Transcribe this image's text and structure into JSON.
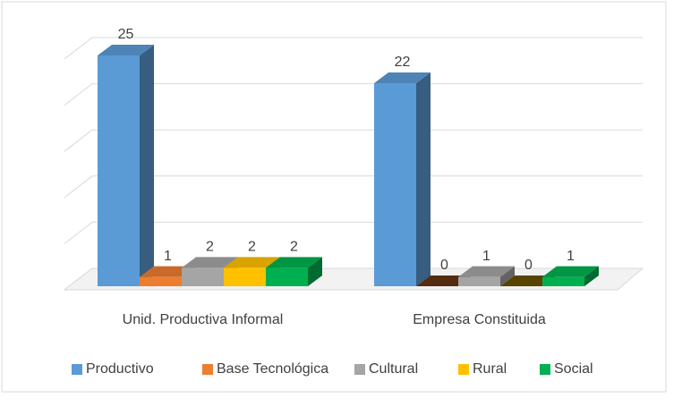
{
  "chart_data": {
    "type": "bar3d",
    "categories": [
      "Unid. Productiva Informal",
      "Empresa Constituida"
    ],
    "series": [
      {
        "name": "Productivo",
        "color": "#5b9bd5",
        "values": [
          25,
          22
        ]
      },
      {
        "name": "Base Tecnológica",
        "color": "#ed7d31",
        "values": [
          1,
          0
        ]
      },
      {
        "name": "Cultural",
        "color": "#a5a5a5",
        "values": [
          2,
          1
        ]
      },
      {
        "name": "Rural",
        "color": "#ffc000",
        "values": [
          2,
          0
        ]
      },
      {
        "name": "Social",
        "color": "#00b050",
        "values": [
          2,
          1
        ]
      }
    ],
    "ylim": [
      0,
      25
    ],
    "yticks": [
      0,
      5,
      10,
      15,
      20,
      25
    ],
    "grid": true,
    "legend": "bottom"
  }
}
